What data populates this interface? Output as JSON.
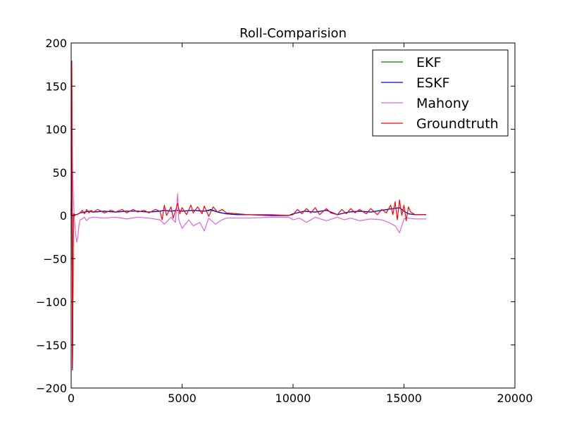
{
  "chart_data": {
    "type": "line",
    "title": "Roll-Comparision",
    "xlabel": "",
    "ylabel": "",
    "xlim": [
      0,
      20000
    ],
    "ylim": [
      -200,
      200
    ],
    "x_ticks": [
      0,
      5000,
      10000,
      15000,
      20000
    ],
    "y_ticks": [
      -200,
      -150,
      -100,
      -50,
      0,
      50,
      100,
      150,
      200
    ],
    "x_tick_labels": [
      "0",
      "5000",
      "10000",
      "15000",
      "20000"
    ],
    "y_tick_labels": [
      "−200",
      "−150",
      "−100",
      "−50",
      "0",
      "50",
      "100",
      "150",
      "200"
    ],
    "grid": false,
    "legend_position": "top-right",
    "series": [
      {
        "name": "EKF",
        "color": "#008000",
        "x": [
          0,
          30,
          60,
          100,
          150,
          250,
          400,
          600,
          800,
          1000,
          1500,
          2000,
          2500,
          3000,
          3500,
          4000,
          4200,
          4500,
          4800,
          5000,
          5500,
          6000,
          6300,
          6600,
          7000,
          7500,
          8000,
          9000,
          9800,
          10000,
          10500,
          11000,
          11500,
          12000,
          12500,
          13000,
          13500,
          14000,
          14500,
          14800,
          15000,
          15200,
          15500,
          16000
        ],
        "y": [
          0,
          178,
          -178,
          2,
          1,
          1,
          3,
          4,
          5,
          4,
          5,
          4,
          5,
          5,
          4,
          5,
          6,
          5,
          6,
          5,
          6,
          5,
          6,
          4,
          2,
          1,
          1,
          0,
          0,
          2,
          5,
          4,
          6,
          1,
          4,
          5,
          4,
          6,
          8,
          9,
          5,
          2,
          1,
          1
        ]
      },
      {
        "name": "ESKF",
        "color": "#0000ff",
        "x": [
          0,
          30,
          60,
          100,
          150,
          250,
          400,
          600,
          800,
          1000,
          1500,
          2000,
          2500,
          3000,
          3500,
          4000,
          4200,
          4500,
          4800,
          5000,
          5500,
          6000,
          6300,
          6600,
          7000,
          7500,
          8000,
          9000,
          9800,
          10000,
          10500,
          11000,
          11500,
          12000,
          12500,
          13000,
          13500,
          14000,
          14500,
          14800,
          15000,
          15200,
          15500,
          16000
        ],
        "y": [
          0,
          179,
          -179,
          2,
          1,
          1,
          3,
          4,
          5,
          4,
          5,
          4,
          5,
          5,
          4,
          5,
          6,
          5,
          6,
          5,
          6,
          5,
          7,
          4,
          2,
          1,
          1,
          0,
          0,
          2,
          5,
          4,
          6,
          1,
          4,
          5,
          4,
          6,
          8,
          9,
          5,
          2,
          1,
          1
        ]
      },
      {
        "name": "Mahony",
        "color": "#dd66dd",
        "x": [
          0,
          20,
          40,
          60,
          100,
          150,
          200,
          250,
          300,
          350,
          400,
          500,
          600,
          700,
          800,
          1000,
          1500,
          2000,
          2500,
          3000,
          3500,
          4000,
          4200,
          4500,
          4700,
          4800,
          4850,
          5000,
          5300,
          5500,
          5800,
          6000,
          6200,
          6500,
          6800,
          7000,
          7500,
          8000,
          9000,
          9800,
          10000,
          10300,
          10600,
          11000,
          11500,
          12000,
          12300,
          12600,
          13000,
          13500,
          14000,
          14300,
          14600,
          14800,
          15000,
          15200,
          15500,
          16000
        ],
        "y": [
          0,
          175,
          120,
          60,
          20,
          -5,
          -20,
          -31,
          -25,
          -12,
          -5,
          -4,
          -2,
          -6,
          -3,
          -2,
          -3,
          -2,
          -4,
          -2,
          -3,
          -5,
          -10,
          -2,
          -8,
          25,
          -5,
          -15,
          -5,
          -12,
          -8,
          -18,
          -3,
          -10,
          -5,
          -3,
          -3,
          -3,
          -2,
          -2,
          -5,
          -3,
          -8,
          -2,
          -6,
          -2,
          -5,
          -3,
          -6,
          -4,
          -5,
          -8,
          -12,
          -20,
          -4,
          -3,
          -4,
          -4
        ]
      },
      {
        "name": "Groundtruth",
        "color": "#ff0000",
        "x": [
          0,
          30,
          60,
          100,
          150,
          250,
          400,
          500,
          600,
          700,
          800,
          900,
          1000,
          1200,
          1500,
          1800,
          2000,
          2300,
          2500,
          2800,
          3000,
          3300,
          3500,
          3800,
          4000,
          4100,
          4200,
          4300,
          4500,
          4600,
          4800,
          4900,
          5000,
          5200,
          5400,
          5500,
          5700,
          5900,
          6000,
          6200,
          6400,
          6600,
          6800,
          7000,
          7500,
          8000,
          9000,
          9800,
          10000,
          10200,
          10400,
          10600,
          10800,
          11000,
          11200,
          11500,
          11700,
          12000,
          12200,
          12400,
          12600,
          12800,
          13000,
          13300,
          13500,
          13800,
          14000,
          14200,
          14400,
          14500,
          14600,
          14700,
          14800,
          14900,
          15000,
          15100,
          15200,
          15300,
          15500,
          16000
        ],
        "y": [
          0,
          178,
          -178,
          2,
          1,
          1,
          3,
          6,
          2,
          7,
          3,
          6,
          4,
          7,
          3,
          6,
          4,
          7,
          3,
          7,
          4,
          6,
          3,
          7,
          5,
          -5,
          12,
          0,
          10,
          -3,
          14,
          2,
          9,
          1,
          12,
          3,
          10,
          2,
          11,
          -1,
          10,
          4,
          7,
          3,
          2,
          1,
          1,
          0,
          1,
          7,
          2,
          8,
          3,
          9,
          1,
          8,
          3,
          1,
          7,
          2,
          8,
          3,
          7,
          2,
          8,
          1,
          7,
          3,
          12,
          1,
          16,
          -5,
          18,
          0,
          12,
          -6,
          10,
          4,
          1,
          1
        ]
      }
    ]
  }
}
